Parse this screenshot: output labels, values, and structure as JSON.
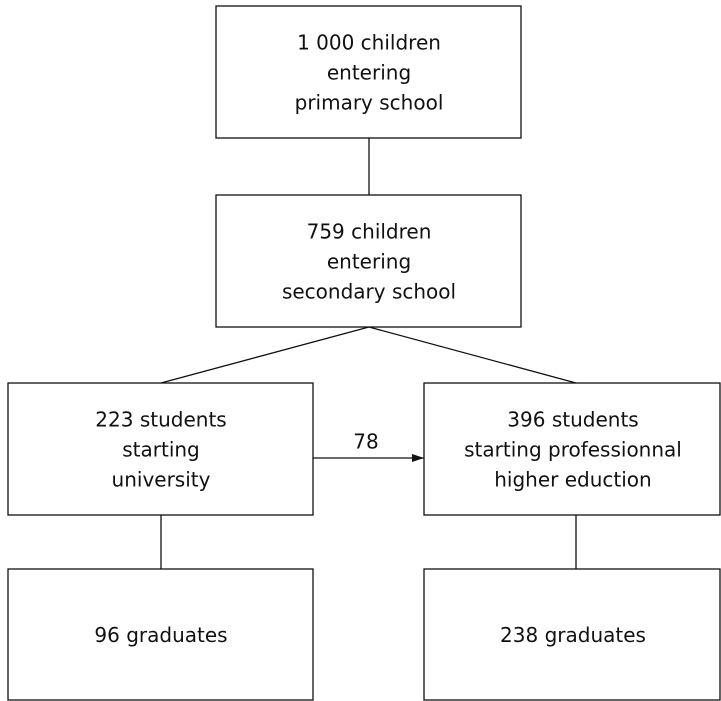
{
  "nodes": [
    {
      "lines": [
        "1 000 children",
        "entering",
        "primary school"
      ]
    },
    {
      "lines": [
        "759 children",
        "entering",
        "secondary school"
      ]
    },
    {
      "lines": [
        "223 students",
        "starting",
        "university"
      ]
    },
    {
      "lines": [
        "396 students",
        "starting professionnal",
        "higher eduction"
      ]
    },
    {
      "lines": [
        "96 graduates"
      ]
    },
    {
      "lines": [
        "238 graduates"
      ]
    }
  ],
  "edges": [
    {
      "label": "78"
    }
  ]
}
